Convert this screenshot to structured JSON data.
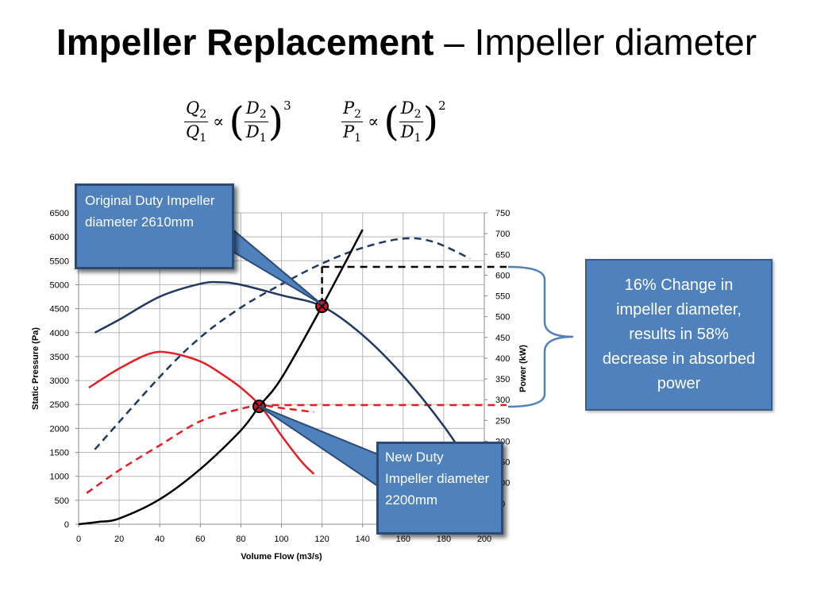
{
  "slide": {
    "title_bold": "Impeller Replacement",
    "title_rest": " – Impeller diameter"
  },
  "formulas": {
    "f1": {
      "num": "Q",
      "num_sub": "2",
      "den": "Q",
      "den_sub": "1",
      "rnum": "D",
      "rnum_sub": "2",
      "rden": "D",
      "rden_sub": "1",
      "exponent": "3",
      "operator": "∝"
    },
    "f2": {
      "num": "P",
      "num_sub": "2",
      "den": "P",
      "den_sub": "1",
      "rnum": "D",
      "rnum_sub": "2",
      "rden": "D",
      "rden_sub": "1",
      "exponent": "2",
      "operator": "∝"
    }
  },
  "callouts": {
    "original": "Original Duty Impeller diameter 2610mm",
    "new": "New Duty Impeller diameter 2200mm",
    "summary": "16% Change in impeller diameter, results in 58% decrease in absorbed power"
  },
  "colors": {
    "navy": "#1f3864",
    "red": "#e31e24",
    "black": "#000000",
    "callout": "#4f81bd"
  },
  "chart_data": {
    "type": "line",
    "xlabel": "Volume Flow (m3/s)",
    "ylabel": "Static Pressure (Pa)",
    "y2label": "Power (kW)",
    "xlim": [
      0,
      200
    ],
    "ylim": [
      0,
      6500
    ],
    "y2lim": [
      0,
      750
    ],
    "xticks": [
      0,
      20,
      40,
      60,
      80,
      100,
      120,
      140,
      160,
      180,
      200
    ],
    "yticks": [
      0,
      500,
      1000,
      1500,
      2000,
      2500,
      3000,
      3500,
      4000,
      4500,
      5000,
      5500,
      6000,
      6500
    ],
    "y2ticks": [
      0,
      50,
      100,
      150,
      200,
      250,
      300,
      350,
      400,
      450,
      500,
      550,
      600,
      650,
      700,
      750
    ],
    "grid": true,
    "series": [
      {
        "axis": "left",
        "style": "solid",
        "color": "#1f3864",
        "x": [
          8,
          20,
          40,
          60,
          70,
          80,
          100,
          120,
          140,
          160,
          180,
          195
        ],
        "y": [
          4000,
          4270,
          4750,
          5020,
          5050,
          5000,
          4780,
          4550,
          3950,
          3100,
          2050,
          1100
        ]
      },
      {
        "axis": "right",
        "style": "dashed",
        "color": "#1f3864",
        "x": [
          8,
          40,
          60,
          80,
          100,
          120,
          140,
          160,
          175,
          193
        ],
        "y": [
          180,
          355,
          450,
          522,
          578,
          628,
          666,
          688,
          680,
          640
        ]
      },
      {
        "axis": "left",
        "style": "solid",
        "color": "#e31e24",
        "x": [
          5,
          20,
          35,
          45,
          60,
          70,
          80,
          90,
          100,
          110,
          116
        ],
        "y": [
          2850,
          3250,
          3560,
          3580,
          3400,
          3150,
          2850,
          2450,
          1850,
          1300,
          1050
        ]
      },
      {
        "axis": "right",
        "style": "dashed",
        "color": "#e31e24",
        "x": [
          4,
          20,
          40,
          60,
          80,
          90,
          100,
          116
        ],
        "y": [
          75,
          130,
          190,
          248,
          278,
          286,
          280,
          270
        ]
      },
      {
        "axis": "left",
        "style": "solid",
        "color": "#000000",
        "x": [
          0,
          10,
          20,
          40,
          60,
          80,
          89,
          100,
          120,
          140
        ],
        "y": [
          0,
          50,
          120,
          520,
          1150,
          1960,
          2460,
          3050,
          4550,
          6150
        ]
      }
    ],
    "duty_points": [
      {
        "name": "Original Duty",
        "x": 120,
        "y": 4550
      },
      {
        "name": "New Duty",
        "x": 89,
        "y": 2460
      }
    ],
    "reference_lines": [
      {
        "color": "#000000",
        "x_from": 120,
        "x_to": 200,
        "y2": 620
      },
      {
        "color": "#e31e24",
        "x_from": 89,
        "x_to": 200,
        "y2": 287
      }
    ]
  }
}
